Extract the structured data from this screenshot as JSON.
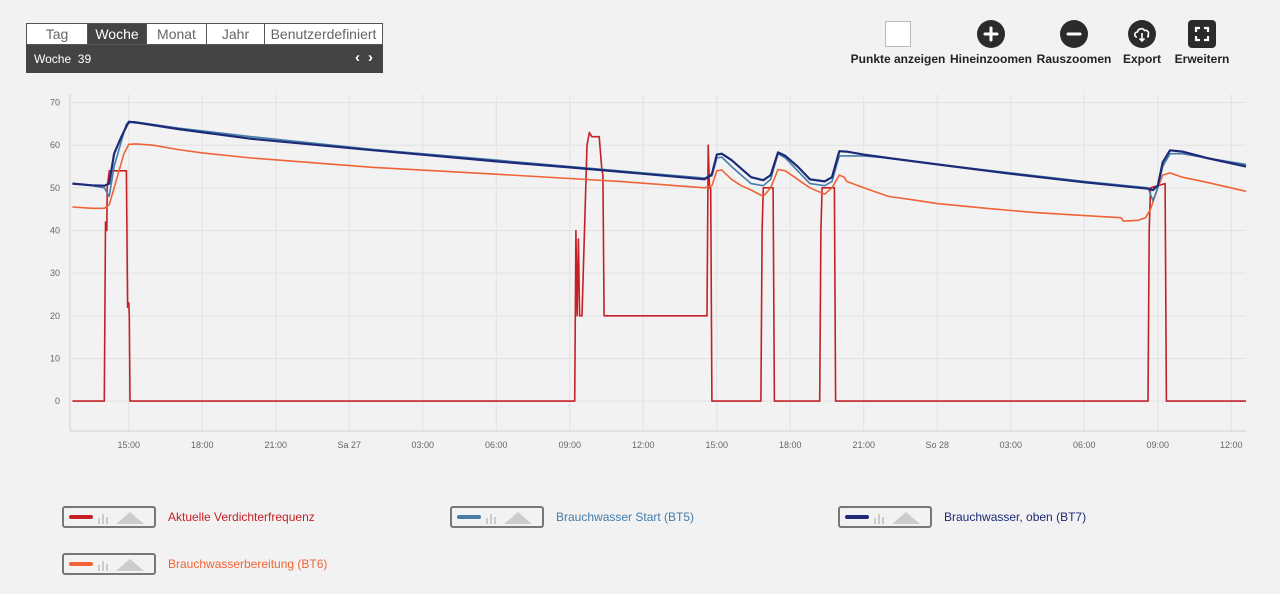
{
  "period_selector": {
    "tabs": [
      {
        "label": "Tag",
        "active": false
      },
      {
        "label": "Woche",
        "active": true
      },
      {
        "label": "Monat",
        "active": false
      },
      {
        "label": "Jahr",
        "active": false
      },
      {
        "label": "Benutzerdefiniert",
        "active": false
      }
    ],
    "range_label": "Woche  39",
    "prev_symbol": "‹",
    "next_symbol": "›"
  },
  "toolbar": {
    "show_points_label": "Punkte anzeigen",
    "zoom_in_label": "Hineinzoomen",
    "zoom_out_label": "Rauszoomen",
    "export_label": "Export",
    "expand_label": "Erweitern"
  },
  "colors": {
    "frequency": "#c42026",
    "bt5": "#457ca8",
    "bt7": "#1c2a78",
    "bt6": "#f06336"
  },
  "chart_data": {
    "type": "line",
    "xlabel": "",
    "ylabel": "",
    "ylim": [
      -7,
      72
    ],
    "yticks": [
      0,
      10,
      20,
      30,
      40,
      50,
      60,
      70
    ],
    "xlim": [
      12.6,
      60.6
    ],
    "xticks": [
      {
        "x": 15,
        "label": "15:00"
      },
      {
        "x": 18,
        "label": "18:00"
      },
      {
        "x": 21,
        "label": "21:00"
      },
      {
        "x": 24,
        "label": "Sa 27"
      },
      {
        "x": 27,
        "label": "03:00"
      },
      {
        "x": 30,
        "label": "06:00"
      },
      {
        "x": 33,
        "label": "09:00"
      },
      {
        "x": 36,
        "label": "12:00"
      },
      {
        "x": 39,
        "label": "15:00"
      },
      {
        "x": 42,
        "label": "18:00"
      },
      {
        "x": 45,
        "label": "21:00"
      },
      {
        "x": 48,
        "label": "So 28"
      },
      {
        "x": 51,
        "label": "03:00"
      },
      {
        "x": 54,
        "label": "06:00"
      },
      {
        "x": 57,
        "label": "09:00"
      },
      {
        "x": 60,
        "label": "12:00"
      }
    ],
    "grid": true,
    "legend_position": "bottom",
    "series": [
      {
        "name": "Aktuelle Verdichterfrequenz",
        "color_key": "frequency",
        "points": [
          [
            12.7,
            0
          ],
          [
            14.0,
            0
          ],
          [
            14.05,
            42
          ],
          [
            14.1,
            40
          ],
          [
            14.12,
            50
          ],
          [
            14.2,
            54
          ],
          [
            14.9,
            54
          ],
          [
            14.95,
            22
          ],
          [
            15.0,
            23
          ],
          [
            15.02,
            20
          ],
          [
            15.05,
            0
          ],
          [
            33.2,
            0
          ],
          [
            33.25,
            40
          ],
          [
            33.3,
            20
          ],
          [
            33.35,
            38
          ],
          [
            33.4,
            20
          ],
          [
            33.5,
            20
          ],
          [
            33.7,
            60
          ],
          [
            33.8,
            63
          ],
          [
            33.9,
            62
          ],
          [
            34.0,
            62
          ],
          [
            34.2,
            62
          ],
          [
            34.3,
            55
          ],
          [
            34.35,
            53
          ],
          [
            34.4,
            20
          ],
          [
            38.6,
            20
          ],
          [
            38.65,
            60
          ],
          [
            38.7,
            50
          ],
          [
            38.75,
            50
          ],
          [
            38.8,
            0
          ],
          [
            40.8,
            0
          ],
          [
            40.85,
            40
          ],
          [
            40.9,
            50
          ],
          [
            41.3,
            50
          ],
          [
            41.35,
            0
          ],
          [
            43.2,
            0
          ],
          [
            43.25,
            40
          ],
          [
            43.3,
            50
          ],
          [
            43.8,
            50
          ],
          [
            43.85,
            0
          ],
          [
            56.6,
            0
          ],
          [
            56.65,
            40
          ],
          [
            56.7,
            50
          ],
          [
            57.3,
            51
          ],
          [
            57.35,
            0
          ],
          [
            60.6,
            0
          ]
        ]
      },
      {
        "name": "Brauchwasser Start (BT5)",
        "color_key": "bt5",
        "points": [
          [
            12.7,
            51
          ],
          [
            13.5,
            50.5
          ],
          [
            14.0,
            50
          ],
          [
            14.2,
            48
          ],
          [
            14.4,
            55
          ],
          [
            14.6,
            59
          ],
          [
            14.9,
            65
          ],
          [
            15.2,
            65.5
          ],
          [
            17,
            64
          ],
          [
            20,
            62
          ],
          [
            25,
            59
          ],
          [
            30,
            56.5
          ],
          [
            33,
            55
          ],
          [
            35,
            54
          ],
          [
            38.5,
            52.3
          ],
          [
            38.8,
            52.8
          ],
          [
            39.0,
            57
          ],
          [
            39.2,
            57.2
          ],
          [
            39.6,
            55
          ],
          [
            40,
            53
          ],
          [
            40.4,
            51
          ],
          [
            40.9,
            50.5
          ],
          [
            41.2,
            52
          ],
          [
            41.5,
            58
          ],
          [
            41.8,
            57
          ],
          [
            42.3,
            54
          ],
          [
            42.8,
            51
          ],
          [
            43.4,
            50.5
          ],
          [
            43.7,
            51.5
          ],
          [
            44.0,
            57.5
          ],
          [
            44.3,
            57.5
          ],
          [
            45,
            57.5
          ],
          [
            46,
            57
          ],
          [
            48,
            55.5
          ],
          [
            51,
            53.5
          ],
          [
            54,
            51.5
          ],
          [
            56.6,
            50
          ],
          [
            56.8,
            47
          ],
          [
            57.0,
            50
          ],
          [
            57.2,
            55
          ],
          [
            57.5,
            58
          ],
          [
            58,
            58
          ],
          [
            59,
            57
          ],
          [
            60.6,
            55.5
          ]
        ]
      },
      {
        "name": "Brauchwasser, oben (BT7)",
        "color_key": "bt7",
        "points": [
          [
            12.7,
            51
          ],
          [
            13.5,
            50.6
          ],
          [
            14.0,
            50.5
          ],
          [
            14.2,
            51
          ],
          [
            14.4,
            58
          ],
          [
            14.7,
            62
          ],
          [
            15.0,
            65.5
          ],
          [
            15.3,
            65.3
          ],
          [
            17,
            63.8
          ],
          [
            20,
            61.5
          ],
          [
            25,
            58.8
          ],
          [
            30,
            56.2
          ],
          [
            33,
            54.8
          ],
          [
            35,
            53.8
          ],
          [
            38.5,
            52
          ],
          [
            38.8,
            53.2
          ],
          [
            39.0,
            57.8
          ],
          [
            39.2,
            58
          ],
          [
            39.6,
            56.5
          ],
          [
            40,
            54.5
          ],
          [
            40.4,
            52.5
          ],
          [
            40.9,
            51.8
          ],
          [
            41.2,
            53
          ],
          [
            41.5,
            58.3
          ],
          [
            41.8,
            57.5
          ],
          [
            42.3,
            55
          ],
          [
            42.8,
            52
          ],
          [
            43.4,
            51.5
          ],
          [
            43.7,
            52.5
          ],
          [
            44.0,
            58.6
          ],
          [
            44.3,
            58.5
          ],
          [
            45,
            57.8
          ],
          [
            46,
            57
          ],
          [
            48,
            55.5
          ],
          [
            51,
            53.3
          ],
          [
            54,
            51.3
          ],
          [
            56.6,
            49.8
          ],
          [
            56.8,
            49.5
          ],
          [
            57.0,
            50.5
          ],
          [
            57.2,
            56
          ],
          [
            57.5,
            58.8
          ],
          [
            58,
            58.5
          ],
          [
            59,
            57
          ],
          [
            60.6,
            55
          ]
        ]
      },
      {
        "name": "Brauchwasserbereitung (BT6)",
        "color_key": "bt6",
        "points": [
          [
            12.7,
            45.5
          ],
          [
            13.5,
            45.2
          ],
          [
            14.0,
            45.2
          ],
          [
            14.2,
            46
          ],
          [
            14.5,
            52
          ],
          [
            14.8,
            58
          ],
          [
            15.0,
            60.2
          ],
          [
            15.3,
            60.3
          ],
          [
            16,
            60
          ],
          [
            17,
            59
          ],
          [
            18,
            58.2
          ],
          [
            20,
            57
          ],
          [
            25,
            54.8
          ],
          [
            30,
            53.2
          ],
          [
            33,
            52.2
          ],
          [
            35,
            51.5
          ],
          [
            38.5,
            50
          ],
          [
            38.8,
            50.5
          ],
          [
            39.0,
            54
          ],
          [
            39.2,
            54.2
          ],
          [
            39.6,
            52
          ],
          [
            40,
            50.5
          ],
          [
            40.4,
            49.5
          ],
          [
            40.9,
            48
          ],
          [
            41.2,
            50
          ],
          [
            41.5,
            54.3
          ],
          [
            41.8,
            54
          ],
          [
            42.3,
            52
          ],
          [
            42.8,
            50
          ],
          [
            43.4,
            48.5
          ],
          [
            43.7,
            50
          ],
          [
            44.0,
            53
          ],
          [
            44.2,
            52.5
          ],
          [
            44.3,
            51.5
          ],
          [
            45,
            50
          ],
          [
            46,
            48
          ],
          [
            47,
            47.2
          ],
          [
            48,
            46.3
          ],
          [
            50,
            45.2
          ],
          [
            52,
            44.2
          ],
          [
            54,
            43.5
          ],
          [
            55.5,
            43
          ],
          [
            55.6,
            42.2
          ],
          [
            56.2,
            42.4
          ],
          [
            56.5,
            43
          ],
          [
            56.7,
            45
          ],
          [
            57.0,
            50
          ],
          [
            57.2,
            53
          ],
          [
            57.5,
            53.5
          ],
          [
            58,
            52.5
          ],
          [
            59,
            51.3
          ],
          [
            60.6,
            49.2
          ]
        ]
      }
    ]
  }
}
